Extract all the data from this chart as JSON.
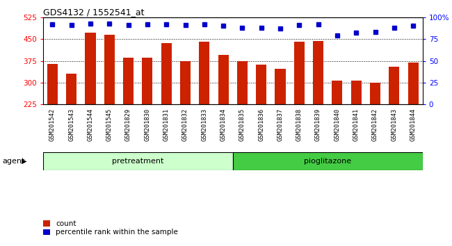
{
  "title": "GDS4132 / 1552541_at",
  "samples": [
    "GSM201542",
    "GSM201543",
    "GSM201544",
    "GSM201545",
    "GSM201829",
    "GSM201830",
    "GSM201831",
    "GSM201832",
    "GSM201833",
    "GSM201834",
    "GSM201835",
    "GSM201836",
    "GSM201837",
    "GSM201838",
    "GSM201839",
    "GSM201840",
    "GSM201841",
    "GSM201842",
    "GSM201843",
    "GSM201844"
  ],
  "bar_values": [
    365,
    330,
    472,
    465,
    385,
    385,
    435,
    375,
    440,
    395,
    375,
    362,
    348,
    442,
    443,
    308,
    308,
    300,
    355,
    370
  ],
  "percentile_values": [
    92,
    91,
    93,
    93,
    91,
    92,
    92,
    91,
    92,
    90,
    88,
    88,
    87,
    91,
    92,
    79,
    82,
    83,
    88,
    90
  ],
  "bar_color": "#CC2200",
  "percentile_color": "#0000CC",
  "ylim_left": [
    225,
    525
  ],
  "ylim_right": [
    0,
    100
  ],
  "yticks_left": [
    225,
    300,
    375,
    450,
    525
  ],
  "yticks_right": [
    0,
    25,
    50,
    75,
    100
  ],
  "yticklabels_right": [
    "0",
    "25",
    "50",
    "75",
    "100%"
  ],
  "pretreatment_count": 10,
  "pioglitazone_count": 10,
  "pretreatment_label": "pretreatment",
  "pioglitazone_label": "pioglitazone",
  "agent_label": "agent",
  "legend_count_label": "count",
  "legend_percentile_label": "percentile rank within the sample",
  "pretreatment_color": "#CCFFCC",
  "pioglitazone_color": "#44CC44",
  "background_color": "#C8C8C8",
  "plot_bg_color": "#FFFFFF",
  "grid_yticks": [
    300,
    375,
    450
  ],
  "bar_width": 0.55
}
